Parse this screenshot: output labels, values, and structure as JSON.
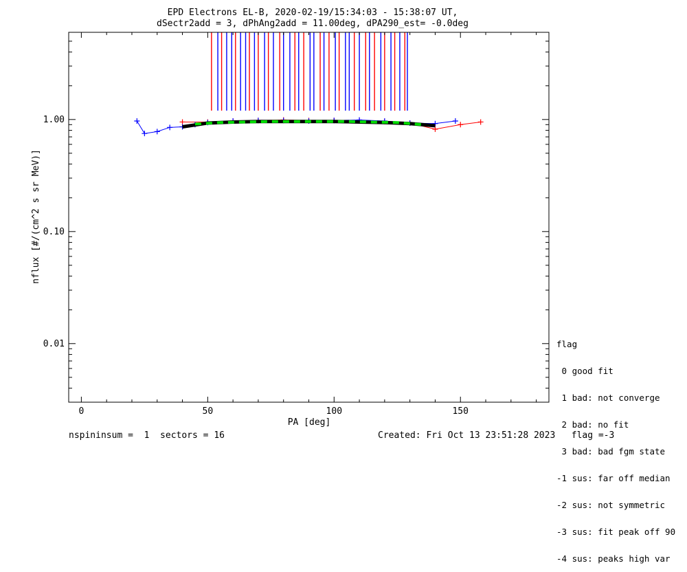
{
  "chart_data": {
    "type": "scatter",
    "title": "EPD Electrons EL-B, 2020-02-19/15:34:03 - 15:38:07 UT,",
    "subtitle": "dSectr2add = 3, dPhAng2add = 11.00deg, dPA290_est=  -0.0deg",
    "xlabel": "PA [deg]",
    "ylabel": "nflux [#/(cm^2 s sr MeV)]",
    "xlim": [
      -5,
      185
    ],
    "ylim": [
      0.003,
      6.0
    ],
    "yscale": "log",
    "x_ticks": [
      0,
      50,
      100,
      150
    ],
    "y_ticks": [
      {
        "value": 0.01,
        "label": "0.01"
      },
      {
        "value": 0.1,
        "label": "0.10"
      },
      {
        "value": 1.0,
        "label": "1.00"
      }
    ],
    "grid": false,
    "colors": {
      "red": "#ff0000",
      "blue": "#0000ff",
      "fit_black": "#000000",
      "fit_green": "#00dd00"
    },
    "series": [
      {
        "color": "red",
        "x": [
          40,
          50,
          60,
          70,
          80,
          90,
          100,
          110,
          120,
          130,
          140,
          150,
          158
        ],
        "y": [
          0.95,
          0.95,
          0.97,
          0.98,
          0.99,
          0.98,
          0.98,
          0.97,
          0.96,
          0.93,
          0.82,
          0.9,
          0.95
        ]
      },
      {
        "color": "blue",
        "x": [
          22,
          25,
          30,
          35,
          40,
          45,
          50,
          60,
          70,
          80,
          90,
          100,
          110,
          120,
          130,
          140,
          148
        ],
        "y": [
          0.97,
          0.75,
          0.78,
          0.85,
          0.86,
          0.9,
          0.94,
          0.97,
          0.98,
          0.98,
          0.97,
          0.98,
          0.99,
          0.97,
          0.93,
          0.92,
          0.97
        ]
      },
      {
        "color": "fit_black",
        "x": [
          40,
          50,
          60,
          70,
          80,
          90,
          100,
          110,
          120,
          130,
          140
        ],
        "y": [
          0.86,
          0.93,
          0.95,
          0.96,
          0.96,
          0.96,
          0.96,
          0.95,
          0.94,
          0.92,
          0.88
        ]
      },
      {
        "color": "fit_green",
        "x": [
          45,
          55,
          65,
          75,
          85,
          95,
          105,
          115,
          125,
          135
        ],
        "y": [
          0.91,
          0.94,
          0.95,
          0.96,
          0.96,
          0.96,
          0.96,
          0.95,
          0.94,
          0.9
        ]
      }
    ],
    "vertical_lines": [
      {
        "x": 51.5,
        "color": "red"
      },
      {
        "x": 54,
        "color": "blue"
      },
      {
        "x": 55.5,
        "color": "red"
      },
      {
        "x": 57.5,
        "color": "blue"
      },
      {
        "x": 59.5,
        "color": "blue"
      },
      {
        "x": 61,
        "color": "red"
      },
      {
        "x": 63,
        "color": "blue"
      },
      {
        "x": 65,
        "color": "blue"
      },
      {
        "x": 66.5,
        "color": "red"
      },
      {
        "x": 68.5,
        "color": "blue"
      },
      {
        "x": 70,
        "color": "red"
      },
      {
        "x": 72.5,
        "color": "blue"
      },
      {
        "x": 74,
        "color": "red"
      },
      {
        "x": 76,
        "color": "blue"
      },
      {
        "x": 78.5,
        "color": "red"
      },
      {
        "x": 80,
        "color": "blue"
      },
      {
        "x": 82.5,
        "color": "blue"
      },
      {
        "x": 84.5,
        "color": "red"
      },
      {
        "x": 86,
        "color": "blue"
      },
      {
        "x": 88,
        "color": "red"
      },
      {
        "x": 90.5,
        "color": "blue"
      },
      {
        "x": 92,
        "color": "blue"
      },
      {
        "x": 94.5,
        "color": "red"
      },
      {
        "x": 96,
        "color": "blue"
      },
      {
        "x": 98,
        "color": "red"
      },
      {
        "x": 100.5,
        "color": "blue"
      },
      {
        "x": 102,
        "color": "red"
      },
      {
        "x": 104.5,
        "color": "blue"
      },
      {
        "x": 106,
        "color": "blue"
      },
      {
        "x": 108,
        "color": "red"
      },
      {
        "x": 110,
        "color": "blue"
      },
      {
        "x": 112.5,
        "color": "red"
      },
      {
        "x": 114,
        "color": "blue"
      },
      {
        "x": 116,
        "color": "red"
      },
      {
        "x": 118.5,
        "color": "blue"
      },
      {
        "x": 120,
        "color": "red"
      },
      {
        "x": 122.5,
        "color": "blue"
      },
      {
        "x": 124,
        "color": "red"
      },
      {
        "x": 126,
        "color": "blue"
      },
      {
        "x": 128,
        "color": "red"
      },
      {
        "x": 129,
        "color": "blue"
      }
    ],
    "vertical_line_range": [
      1.2,
      6.0
    ]
  },
  "legend": {
    "title": "flag",
    "items": [
      " 0 good fit",
      " 1 bad: not converge",
      " 2 bad: no fit",
      " 3 bad: bad fgm state",
      "-1 sus: far off median",
      "-2 sus: not symmetric",
      "-3 sus: fit peak off 90",
      "-4 sus: peaks high var"
    ]
  },
  "footer": {
    "left": "nspininsum =  1  sectors = 16",
    "right": "Created: Fri Oct 13 23:51:28 2023   flag =-3"
  }
}
